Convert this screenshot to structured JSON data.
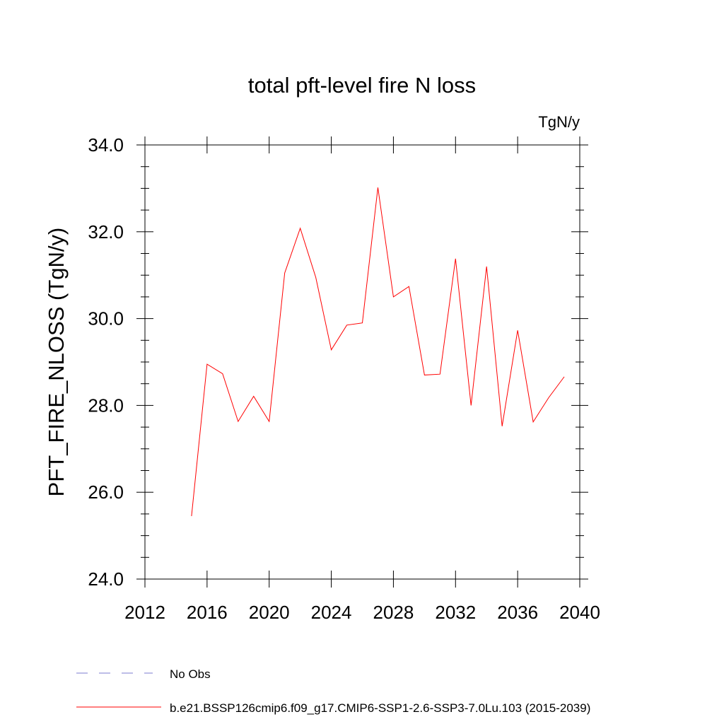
{
  "chart_data": {
    "type": "line",
    "title": "total pft-level fire N loss",
    "units_label": "TgN/y",
    "ylabel": "PFT_FIRE_NLOSS  (TgN/y)",
    "xlabel": "",
    "xlim": [
      2012,
      2040
    ],
    "ylim": [
      24.0,
      34.0
    ],
    "x_ticks": [
      2012,
      2016,
      2020,
      2024,
      2028,
      2032,
      2036,
      2040
    ],
    "x_tick_labels": [
      "2012",
      "2016",
      "2020",
      "2024",
      "2028",
      "2032",
      "2036",
      "2040"
    ],
    "y_ticks": [
      24.0,
      26.0,
      28.0,
      30.0,
      32.0,
      34.0
    ],
    "y_tick_labels": [
      "24.0",
      "26.0",
      "28.0",
      "30.0",
      "32.0",
      "34.0"
    ],
    "grid": false,
    "legend_position": "bottom",
    "series": [
      {
        "name": "b.e21.BSSP126cmip6.f09_g17.CMIP6-SSP1-2.6-SSP3-7.0Lu.103 (2015-2039)",
        "color": "#ff0000",
        "style": "solid",
        "x": [
          2015,
          2016,
          2017,
          2018,
          2019,
          2020,
          2021,
          2022,
          2023,
          2024,
          2025,
          2026,
          2027,
          2028,
          2029,
          2030,
          2031,
          2032,
          2033,
          2034,
          2035,
          2036,
          2037,
          2038,
          2039
        ],
        "values": [
          25.45,
          28.95,
          28.73,
          27.63,
          28.21,
          27.63,
          31.05,
          32.08,
          30.95,
          29.28,
          29.85,
          29.9,
          33.02,
          30.5,
          30.74,
          28.7,
          28.72,
          31.38,
          28.0,
          31.2,
          27.52,
          29.73,
          27.62,
          28.18,
          28.66
        ]
      }
    ],
    "legend": [
      {
        "label": "No Obs",
        "color": "#7b7bd0",
        "style": "dashed"
      },
      {
        "label": "b.e21.BSSP126cmip6.f09_g17.CMIP6-SSP1-2.6-SSP3-7.0Lu.103 (2015-2039)",
        "color": "#ff0000",
        "style": "solid"
      }
    ]
  }
}
